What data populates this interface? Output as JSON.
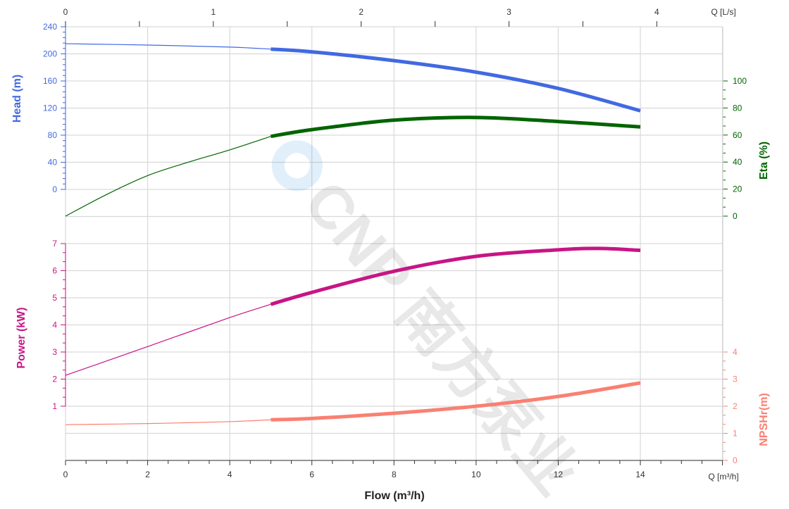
{
  "chart_data": {
    "type": "line",
    "title": "",
    "xlabel": "Flow (m³/h)",
    "x_unit_label": "Q [m³/h]",
    "x_top_unit_label": "Q [L/s]",
    "xlim": [
      0,
      16
    ],
    "x_ticks": [
      0,
      2,
      4,
      6,
      8,
      10,
      12,
      14
    ],
    "x_top_ticks": [
      0,
      1,
      2,
      3,
      4
    ],
    "grid": true,
    "watermark": "CNP 南方泵业",
    "axes": {
      "head": {
        "label": "Head (m)",
        "ticks": [
          0,
          40,
          80,
          120,
          160,
          200,
          240
        ],
        "color": "#4169e1",
        "side": "left"
      },
      "eta": {
        "label": "Eta (%)",
        "ticks": [
          0,
          20,
          40,
          60,
          80,
          100
        ],
        "color": "#006400",
        "side": "right"
      },
      "power": {
        "label": "Power (kW)",
        "ticks": [
          1,
          2,
          3,
          4,
          5,
          6,
          7
        ],
        "color": "#c71585",
        "side": "left"
      },
      "npsh": {
        "label": "NPSHr(m)",
        "ticks": [
          0,
          1,
          2,
          3,
          4
        ],
        "color": "#fa8072",
        "side": "right"
      }
    },
    "operating_range": [
      5,
      14
    ],
    "series": [
      {
        "axis": "head",
        "x": [
          0,
          2,
          4,
          5,
          6,
          8,
          10,
          12,
          14
        ],
        "y": [
          215,
          213,
          210,
          207,
          203,
          190,
          173,
          149,
          116
        ]
      },
      {
        "axis": "eta",
        "x": [
          0,
          1,
          2,
          3,
          4,
          5,
          6,
          8,
          10,
          12,
          14
        ],
        "y": [
          0,
          16,
          30,
          40,
          49,
          59,
          64,
          71,
          73,
          70,
          66
        ]
      },
      {
        "axis": "power",
        "x": [
          0,
          2,
          4,
          5,
          6,
          8,
          10,
          12,
          13,
          14
        ],
        "y": [
          2.14,
          3.2,
          4.27,
          4.76,
          5.2,
          5.98,
          6.53,
          6.77,
          6.82,
          6.75
        ]
      },
      {
        "axis": "npsh",
        "x": [
          0,
          2,
          4,
          5,
          6,
          8,
          10,
          12,
          14
        ],
        "y": [
          1.32,
          1.36,
          1.43,
          1.5,
          1.55,
          1.74,
          2.0,
          2.36,
          2.86
        ]
      }
    ]
  }
}
